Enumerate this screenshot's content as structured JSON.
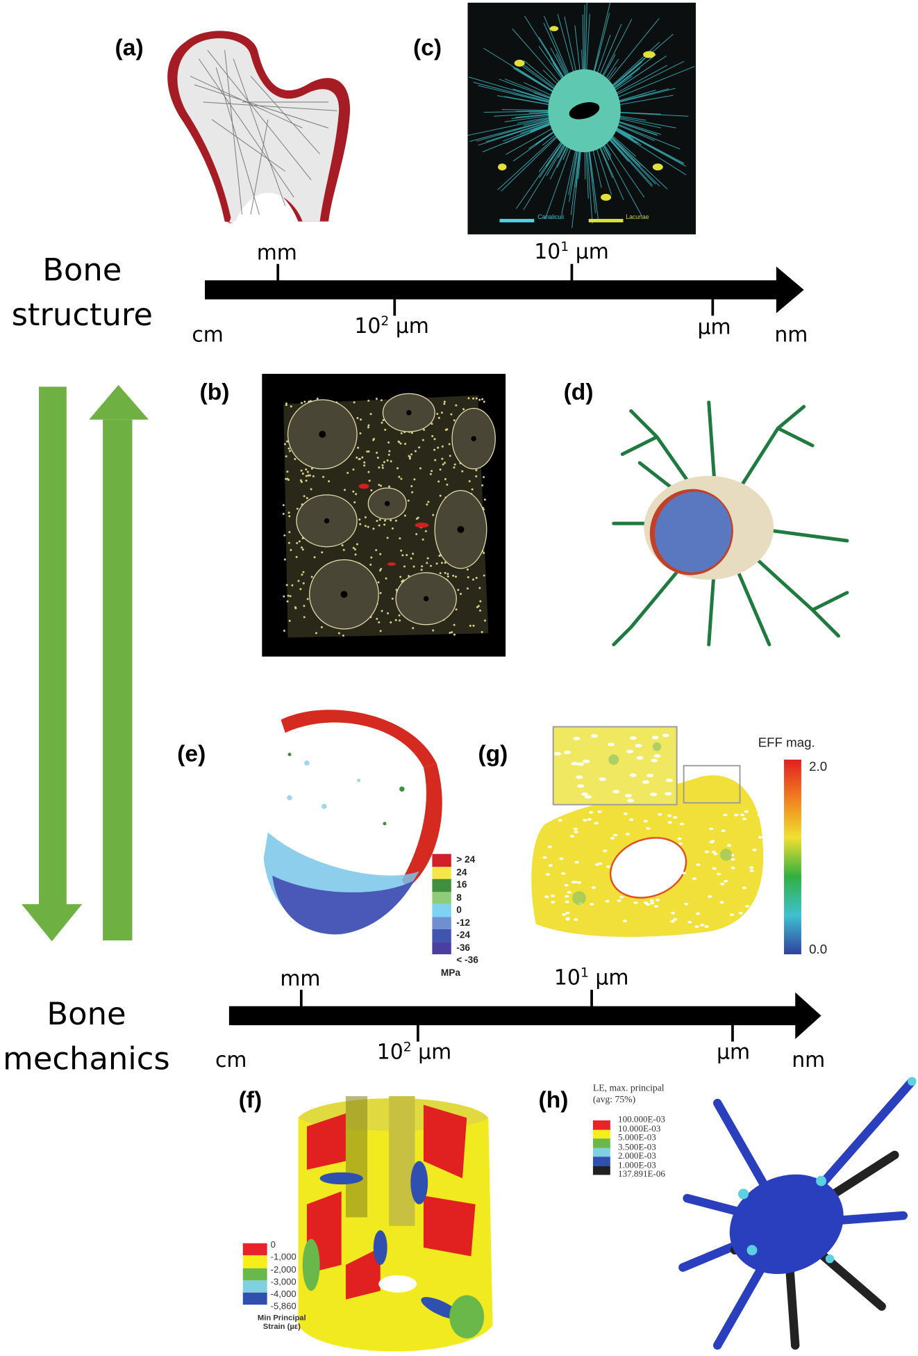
{
  "panels": {
    "a": "(a)",
    "b": "(b)",
    "c": "(c)",
    "d": "(d)",
    "e": "(e)",
    "f": "(f)",
    "g": "(g)",
    "h": "(h)"
  },
  "rows": {
    "structure": {
      "line1": "Bone",
      "line2": "structure"
    },
    "mechanics": {
      "line1": "Bone",
      "line2": "mechanics"
    }
  },
  "scale_axis": {
    "start": "cm",
    "end": "nm",
    "mm": "mm",
    "hundred_um": {
      "base": "10",
      "exp": "2",
      "unit": "µm"
    },
    "ten_um": {
      "base": "10",
      "exp": "1",
      "unit": "µm"
    },
    "um": "µm"
  },
  "panel_c_legend": {
    "canaliculi": "Canaliculi",
    "lacunae": "Lacunae",
    "canaliculi_color": "#4fd3e0",
    "lacunae_color": "#d8e23a"
  },
  "panel_e_legend": {
    "items": [
      {
        "label": "> 24",
        "color": "#d0202a"
      },
      {
        "label": "24",
        "color": "#f5e64a"
      },
      {
        "label": "16",
        "color": "#3f8f3f"
      },
      {
        "label": "8",
        "color": "#8fcc7a"
      },
      {
        "label": "0",
        "color": "#7fd3f2"
      },
      {
        "label": "-12",
        "color": "#6f8fd0"
      },
      {
        "label": "-24",
        "color": "#3f55b0"
      },
      {
        "label": "-36",
        "color": "#4a3f9f"
      },
      {
        "label": "< -36",
        "color": ""
      }
    ],
    "unit": "MPa"
  },
  "panel_g_colorbar": {
    "title": "EFF mag.",
    "max": "2.0",
    "min": "0.0"
  },
  "panel_f_legend": {
    "ticks": [
      "0",
      "-1,000",
      "-2,000",
      "-3,000",
      "-4,000",
      "-5,860"
    ],
    "colors": [
      "#e8242a",
      "#f6ee1a",
      "#6ab84a",
      "#7fd0e0",
      "#3050b0"
    ],
    "title_line1": "Min Principal",
    "title_line2": "Strain (µε)"
  },
  "panel_h_legend": {
    "title_line1": "LE, max. principal",
    "title_line2": "(avg: 75%)",
    "ticks": [
      "100.000E-03",
      "10.000E-03",
      "5.000E-03",
      "3.500E-03",
      "2.000E-03",
      "1.000E-03",
      "137.891E-06"
    ],
    "colors": [
      "#e8242a",
      "#f6ee1a",
      "#6ab84a",
      "#7fd0e0",
      "#3050b0",
      "#202020"
    ]
  },
  "colors": {
    "arrow_green": "#6fb043",
    "axis": "#000000"
  }
}
